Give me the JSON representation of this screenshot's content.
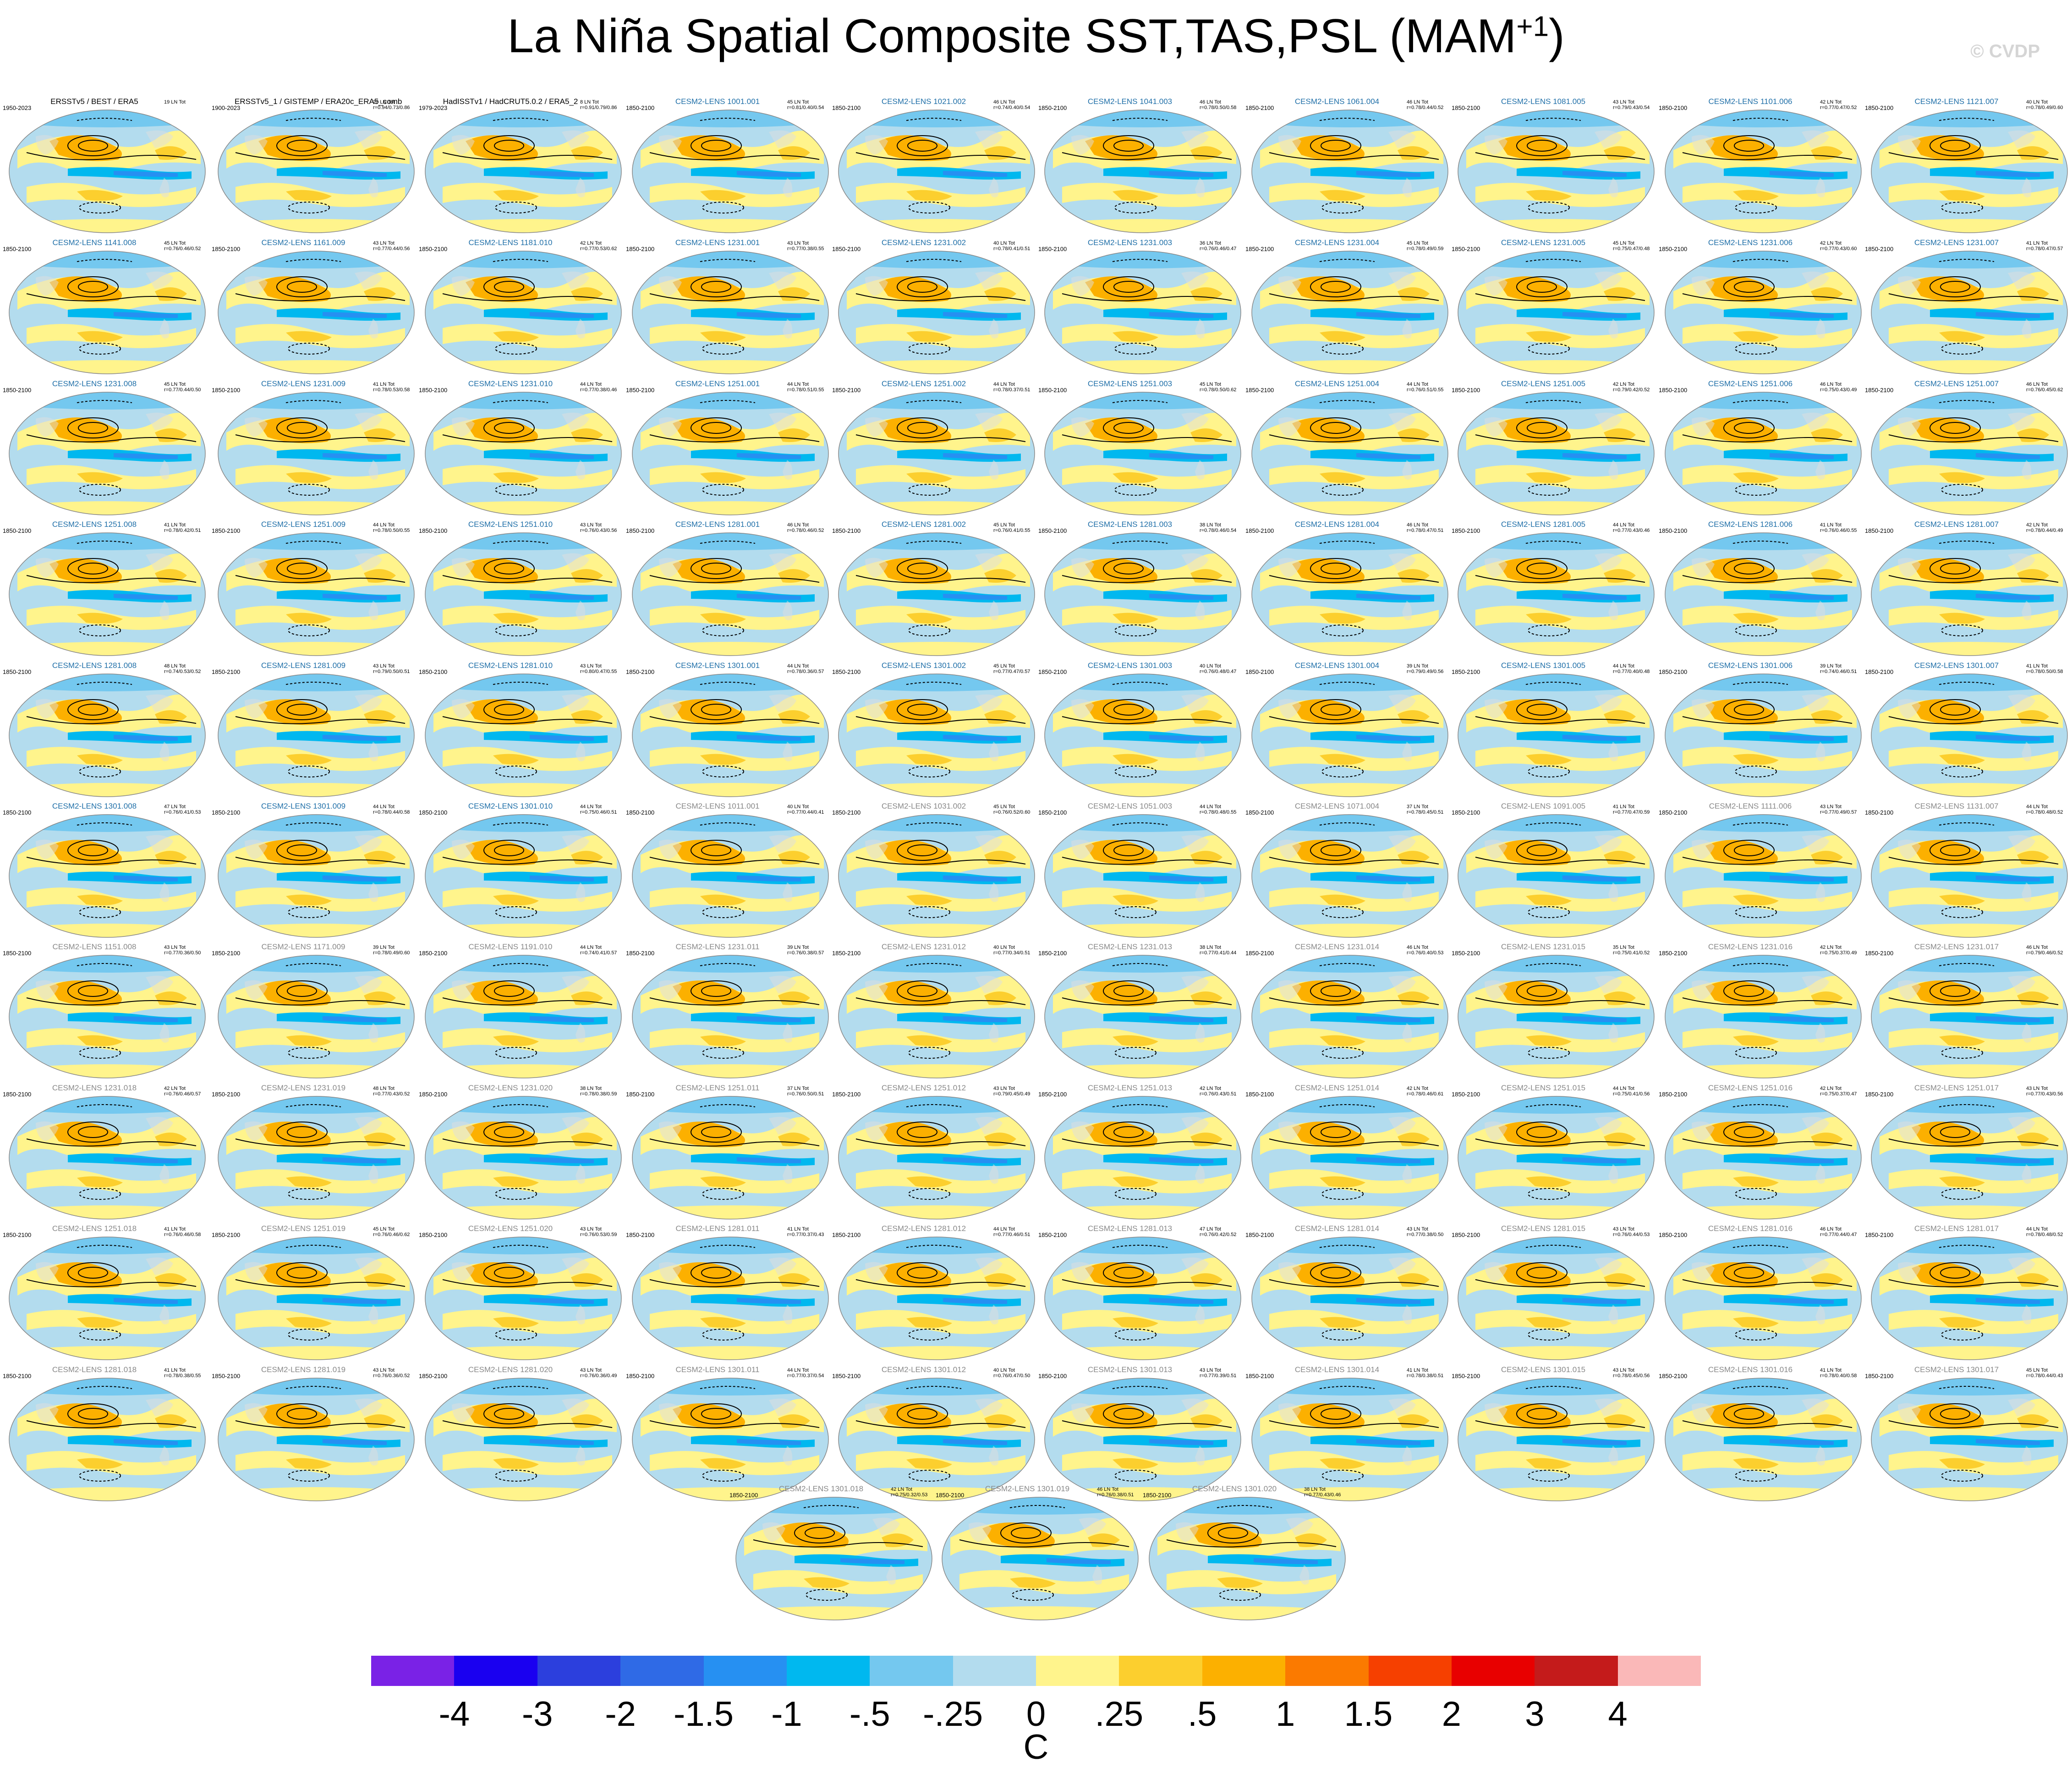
{
  "title_main": "La Niña Spatial Composite SST,TAS,PSL (MAM",
  "title_sup": "+1",
  "title_end": ")",
  "credit": "© CVDP",
  "panels": [
    {
      "title": "ERSSTv5 / BEST / ERA5",
      "years": "1950-2023",
      "stats": "19 LN Tot",
      "kind": "obs"
    },
    {
      "title": "ERSSTv5_1 / GISTEMP / ERA20c_ERA5_comb",
      "years": "1900-2023",
      "stats": "20 LN Tot\nr=0.94/0.73/0.86",
      "kind": "obs"
    },
    {
      "title": "HadISSTv1 / HadCRUT5.0.2 / ERA5_2",
      "years": "1979-2023",
      "stats": "8 LN Tot\nr=0.91/0.79/0.86",
      "kind": "obs"
    },
    {
      "title": "CESM2-LENS 1001.001",
      "years": "1850-2100",
      "stats": "45 LN Tot\nr=0.81/0.40/0.54",
      "kind": "m1"
    },
    {
      "title": "CESM2-LENS 1021.002",
      "years": "1850-2100",
      "stats": "46 LN Tot\nr=0.74/0.40/0.54",
      "kind": "m1"
    },
    {
      "title": "CESM2-LENS 1041.003",
      "years": "1850-2100",
      "stats": "46 LN Tot\nr=0.78/0.50/0.58",
      "kind": "m1"
    },
    {
      "title": "CESM2-LENS 1061.004",
      "years": "1850-2100",
      "stats": "46 LN Tot\nr=0.78/0.44/0.52",
      "kind": "m1"
    },
    {
      "title": "CESM2-LENS 1081.005",
      "years": "1850-2100",
      "stats": "43 LN Tot\nr=0.79/0.43/0.54",
      "kind": "m1"
    },
    {
      "title": "CESM2-LENS 1101.006",
      "years": "1850-2100",
      "stats": "42 LN Tot\nr=0.77/0.47/0.52",
      "kind": "m1"
    },
    {
      "title": "CESM2-LENS 1121.007",
      "years": "1850-2100",
      "stats": "40 LN Tot\nr=0.78/0.49/0.60",
      "kind": "m1"
    },
    {
      "title": "CESM2-LENS 1141.008",
      "years": "1850-2100",
      "stats": "45 LN Tot\nr=0.76/0.46/0.52",
      "kind": "m1"
    },
    {
      "title": "CESM2-LENS 1161.009",
      "years": "1850-2100",
      "stats": "43 LN Tot\nr=0.77/0.44/0.56",
      "kind": "m1"
    },
    {
      "title": "CESM2-LENS 1181.010",
      "years": "1850-2100",
      "stats": "42 LN Tot\nr=0.77/0.53/0.62",
      "kind": "m1"
    },
    {
      "title": "CESM2-LENS 1231.001",
      "years": "1850-2100",
      "stats": "43 LN Tot\nr=0.77/0.38/0.55",
      "kind": "m1"
    },
    {
      "title": "CESM2-LENS 1231.002",
      "years": "1850-2100",
      "stats": "40 LN Tot\nr=0.78/0.41/0.51",
      "kind": "m1"
    },
    {
      "title": "CESM2-LENS 1231.003",
      "years": "1850-2100",
      "stats": "36 LN Tot\nr=0.76/0.46/0.47",
      "kind": "m1"
    },
    {
      "title": "CESM2-LENS 1231.004",
      "years": "1850-2100",
      "stats": "45 LN Tot\nr=0.78/0.49/0.59",
      "kind": "m1"
    },
    {
      "title": "CESM2-LENS 1231.005",
      "years": "1850-2100",
      "stats": "45 LN Tot\nr=0.75/0.47/0.48",
      "kind": "m1"
    },
    {
      "title": "CESM2-LENS 1231.006",
      "years": "1850-2100",
      "stats": "42 LN Tot\nr=0.77/0.43/0.60",
      "kind": "m1"
    },
    {
      "title": "CESM2-LENS 1231.007",
      "years": "1850-2100",
      "stats": "41 LN Tot\nr=0.78/0.47/0.57",
      "kind": "m1"
    },
    {
      "title": "CESM2-LENS 1231.008",
      "years": "1850-2100",
      "stats": "45 LN Tot\nr=0.77/0.44/0.50",
      "kind": "m1"
    },
    {
      "title": "CESM2-LENS 1231.009",
      "years": "1850-2100",
      "stats": "41 LN Tot\nr=0.78/0.53/0.58",
      "kind": "m1"
    },
    {
      "title": "CESM2-LENS 1231.010",
      "years": "1850-2100",
      "stats": "44 LN Tot\nr=0.77/0.38/0.46",
      "kind": "m1"
    },
    {
      "title": "CESM2-LENS 1251.001",
      "years": "1850-2100",
      "stats": "44 LN Tot\nr=0.78/0.51/0.55",
      "kind": "m1"
    },
    {
      "title": "CESM2-LENS 1251.002",
      "years": "1850-2100",
      "stats": "44 LN Tot\nr=0.78/0.37/0.51",
      "kind": "m1"
    },
    {
      "title": "CESM2-LENS 1251.003",
      "years": "1850-2100",
      "stats": "45 LN Tot\nr=0.78/0.50/0.62",
      "kind": "m1"
    },
    {
      "title": "CESM2-LENS 1251.004",
      "years": "1850-2100",
      "stats": "44 LN Tot\nr=0.76/0.51/0.55",
      "kind": "m1"
    },
    {
      "title": "CESM2-LENS 1251.005",
      "years": "1850-2100",
      "stats": "42 LN Tot\nr=0.79/0.42/0.52",
      "kind": "m1"
    },
    {
      "title": "CESM2-LENS 1251.006",
      "years": "1850-2100",
      "stats": "46 LN Tot\nr=0.75/0.43/0.49",
      "kind": "m1"
    },
    {
      "title": "CESM2-LENS 1251.007",
      "years": "1850-2100",
      "stats": "46 LN Tot\nr=0.76/0.45/0.62",
      "kind": "m1"
    },
    {
      "title": "CESM2-LENS 1251.008",
      "years": "1850-2100",
      "stats": "41 LN Tot\nr=0.78/0.42/0.51",
      "kind": "m1"
    },
    {
      "title": "CESM2-LENS 1251.009",
      "years": "1850-2100",
      "stats": "44 LN Tot\nr=0.78/0.50/0.55",
      "kind": "m1"
    },
    {
      "title": "CESM2-LENS 1251.010",
      "years": "1850-2100",
      "stats": "43 LN Tot\nr=0.76/0.43/0.56",
      "kind": "m1"
    },
    {
      "title": "CESM2-LENS 1281.001",
      "years": "1850-2100",
      "stats": "46 LN Tot\nr=0.78/0.46/0.52",
      "kind": "m1"
    },
    {
      "title": "CESM2-LENS 1281.002",
      "years": "1850-2100",
      "stats": "45 LN Tot\nr=0.76/0.41/0.55",
      "kind": "m1"
    },
    {
      "title": "CESM2-LENS 1281.003",
      "years": "1850-2100",
      "stats": "38 LN Tot\nr=0.78/0.46/0.54",
      "kind": "m1"
    },
    {
      "title": "CESM2-LENS 1281.004",
      "years": "1850-2100",
      "stats": "46 LN Tot\nr=0.78/0.47/0.51",
      "kind": "m1"
    },
    {
      "title": "CESM2-LENS 1281.005",
      "years": "1850-2100",
      "stats": "44 LN Tot\nr=0.77/0.43/0.46",
      "kind": "m1"
    },
    {
      "title": "CESM2-LENS 1281.006",
      "years": "1850-2100",
      "stats": "41 LN Tot\nr=0.76/0.46/0.55",
      "kind": "m1"
    },
    {
      "title": "CESM2-LENS 1281.007",
      "years": "1850-2100",
      "stats": "42 LN Tot\nr=0.78/0.44/0.49",
      "kind": "m1"
    },
    {
      "title": "CESM2-LENS 1281.008",
      "years": "1850-2100",
      "stats": "48 LN Tot\nr=0.74/0.53/0.52",
      "kind": "m1"
    },
    {
      "title": "CESM2-LENS 1281.009",
      "years": "1850-2100",
      "stats": "43 LN Tot\nr=0.79/0.50/0.51",
      "kind": "m1"
    },
    {
      "title": "CESM2-LENS 1281.010",
      "years": "1850-2100",
      "stats": "43 LN Tot\nr=0.80/0.47/0.55",
      "kind": "m1"
    },
    {
      "title": "CESM2-LENS 1301.001",
      "years": "1850-2100",
      "stats": "44 LN Tot\nr=0.78/0.36/0.57",
      "kind": "m1"
    },
    {
      "title": "CESM2-LENS 1301.002",
      "years": "1850-2100",
      "stats": "45 LN Tot\nr=0.77/0.47/0.57",
      "kind": "m1"
    },
    {
      "title": "CESM2-LENS 1301.003",
      "years": "1850-2100",
      "stats": "40 LN Tot\nr=0.76/0.48/0.47",
      "kind": "m1"
    },
    {
      "title": "CESM2-LENS 1301.004",
      "years": "1850-2100",
      "stats": "39 LN Tot\nr=0.79/0.49/0.56",
      "kind": "m1"
    },
    {
      "title": "CESM2-LENS 1301.005",
      "years": "1850-2100",
      "stats": "44 LN Tot\nr=0.77/0.40/0.48",
      "kind": "m1"
    },
    {
      "title": "CESM2-LENS 1301.006",
      "years": "1850-2100",
      "stats": "39 LN Tot\nr=0.74/0.46/0.51",
      "kind": "m1"
    },
    {
      "title": "CESM2-LENS 1301.007",
      "years": "1850-2100",
      "stats": "41 LN Tot\nr=0.78/0.50/0.58",
      "kind": "m1"
    },
    {
      "title": "CESM2-LENS 1301.008",
      "years": "1850-2100",
      "stats": "47 LN Tot\nr=0.76/0.41/0.53",
      "kind": "m1"
    },
    {
      "title": "CESM2-LENS 1301.009",
      "years": "1850-2100",
      "stats": "44 LN Tot\nr=0.78/0.44/0.58",
      "kind": "m1"
    },
    {
      "title": "CESM2-LENS 1301.010",
      "years": "1850-2100",
      "stats": "44 LN Tot\nr=0.75/0.46/0.51",
      "kind": "m1"
    },
    {
      "title": "CESM2-LENS 1011.001",
      "years": "1850-2100",
      "stats": "40 LN Tot\nr=0.77/0.44/0.41",
      "kind": "m2"
    },
    {
      "title": "CESM2-LENS 1031.002",
      "years": "1850-2100",
      "stats": "45 LN Tot\nr=0.76/0.52/0.60",
      "kind": "m2"
    },
    {
      "title": "CESM2-LENS 1051.003",
      "years": "1850-2100",
      "stats": "44 LN Tot\nr=0.78/0.48/0.55",
      "kind": "m2"
    },
    {
      "title": "CESM2-LENS 1071.004",
      "years": "1850-2100",
      "stats": "37 LN Tot\nr=0.78/0.45/0.51",
      "kind": "m2"
    },
    {
      "title": "CESM2-LENS 1091.005",
      "years": "1850-2100",
      "stats": "41 LN Tot\nr=0.77/0.47/0.59",
      "kind": "m2"
    },
    {
      "title": "CESM2-LENS 1111.006",
      "years": "1850-2100",
      "stats": "43 LN Tot\nr=0.77/0.49/0.57",
      "kind": "m2"
    },
    {
      "title": "CESM2-LENS 1131.007",
      "years": "1850-2100",
      "stats": "44 LN Tot\nr=0.78/0.48/0.52",
      "kind": "m2"
    },
    {
      "title": "CESM2-LENS 1151.008",
      "years": "1850-2100",
      "stats": "43 LN Tot\nr=0.77/0.36/0.50",
      "kind": "m2"
    },
    {
      "title": "CESM2-LENS 1171.009",
      "years": "1850-2100",
      "stats": "39 LN Tot\nr=0.78/0.49/0.60",
      "kind": "m2"
    },
    {
      "title": "CESM2-LENS 1191.010",
      "years": "1850-2100",
      "stats": "44 LN Tot\nr=0.74/0.41/0.57",
      "kind": "m2"
    },
    {
      "title": "CESM2-LENS 1231.011",
      "years": "1850-2100",
      "stats": "39 LN Tot\nr=0.76/0.38/0.57",
      "kind": "m2"
    },
    {
      "title": "CESM2-LENS 1231.012",
      "years": "1850-2100",
      "stats": "40 LN Tot\nr=0.77/0.34/0.51",
      "kind": "m2"
    },
    {
      "title": "CESM2-LENS 1231.013",
      "years": "1850-2100",
      "stats": "38 LN Tot\nr=0.77/0.41/0.44",
      "kind": "m2"
    },
    {
      "title": "CESM2-LENS 1231.014",
      "years": "1850-2100",
      "stats": "46 LN Tot\nr=0.76/0.40/0.53",
      "kind": "m2"
    },
    {
      "title": "CESM2-LENS 1231.015",
      "years": "1850-2100",
      "stats": "35 LN Tot\nr=0.75/0.41/0.52",
      "kind": "m2"
    },
    {
      "title": "CESM2-LENS 1231.016",
      "years": "1850-2100",
      "stats": "42 LN Tot\nr=0.75/0.37/0.49",
      "kind": "m2"
    },
    {
      "title": "CESM2-LENS 1231.017",
      "years": "1850-2100",
      "stats": "46 LN Tot\nr=0.79/0.46/0.52",
      "kind": "m2"
    },
    {
      "title": "CESM2-LENS 1231.018",
      "years": "1850-2100",
      "stats": "42 LN Tot\nr=0.76/0.46/0.57",
      "kind": "m2"
    },
    {
      "title": "CESM2-LENS 1231.019",
      "years": "1850-2100",
      "stats": "48 LN Tot\nr=0.77/0.43/0.52",
      "kind": "m2"
    },
    {
      "title": "CESM2-LENS 1231.020",
      "years": "1850-2100",
      "stats": "38 LN Tot\nr=0.78/0.38/0.59",
      "kind": "m2"
    },
    {
      "title": "CESM2-LENS 1251.011",
      "years": "1850-2100",
      "stats": "37 LN Tot\nr=0.76/0.50/0.51",
      "kind": "m2"
    },
    {
      "title": "CESM2-LENS 1251.012",
      "years": "1850-2100",
      "stats": "43 LN Tot\nr=0.79/0.45/0.49",
      "kind": "m2"
    },
    {
      "title": "CESM2-LENS 1251.013",
      "years": "1850-2100",
      "stats": "42 LN Tot\nr=0.76/0.43/0.51",
      "kind": "m2"
    },
    {
      "title": "CESM2-LENS 1251.014",
      "years": "1850-2100",
      "stats": "42 LN Tot\nr=0.78/0.46/0.61",
      "kind": "m2"
    },
    {
      "title": "CESM2-LENS 1251.015",
      "years": "1850-2100",
      "stats": "44 LN Tot\nr=0.75/0.41/0.56",
      "kind": "m2"
    },
    {
      "title": "CESM2-LENS 1251.016",
      "years": "1850-2100",
      "stats": "42 LN Tot\nr=0.75/0.37/0.47",
      "kind": "m2"
    },
    {
      "title": "CESM2-LENS 1251.017",
      "years": "1850-2100",
      "stats": "43 LN Tot\nr=0.77/0.43/0.56",
      "kind": "m2"
    },
    {
      "title": "CESM2-LENS 1251.018",
      "years": "1850-2100",
      "stats": "41 LN Tot\nr=0.76/0.46/0.58",
      "kind": "m2"
    },
    {
      "title": "CESM2-LENS 1251.019",
      "years": "1850-2100",
      "stats": "45 LN Tot\nr=0.76/0.46/0.62",
      "kind": "m2"
    },
    {
      "title": "CESM2-LENS 1251.020",
      "years": "1850-2100",
      "stats": "43 LN Tot\nr=0.76/0.53/0.59",
      "kind": "m2"
    },
    {
      "title": "CESM2-LENS 1281.011",
      "years": "1850-2100",
      "stats": "41 LN Tot\nr=0.77/0.37/0.43",
      "kind": "m2"
    },
    {
      "title": "CESM2-LENS 1281.012",
      "years": "1850-2100",
      "stats": "44 LN Tot\nr=0.77/0.46/0.51",
      "kind": "m2"
    },
    {
      "title": "CESM2-LENS 1281.013",
      "years": "1850-2100",
      "stats": "47 LN Tot\nr=0.76/0.42/0.52",
      "kind": "m2"
    },
    {
      "title": "CESM2-LENS 1281.014",
      "years": "1850-2100",
      "stats": "43 LN Tot\nr=0.77/0.38/0.50",
      "kind": "m2"
    },
    {
      "title": "CESM2-LENS 1281.015",
      "years": "1850-2100",
      "stats": "43 LN Tot\nr=0.76/0.44/0.53",
      "kind": "m2"
    },
    {
      "title": "CESM2-LENS 1281.016",
      "years": "1850-2100",
      "stats": "46 LN Tot\nr=0.77/0.44/0.47",
      "kind": "m2"
    },
    {
      "title": "CESM2-LENS 1281.017",
      "years": "1850-2100",
      "stats": "44 LN Tot\nr=0.78/0.48/0.52",
      "kind": "m2"
    },
    {
      "title": "CESM2-LENS 1281.018",
      "years": "1850-2100",
      "stats": "41 LN Tot\nr=0.78/0.38/0.55",
      "kind": "m2"
    },
    {
      "title": "CESM2-LENS 1281.019",
      "years": "1850-2100",
      "stats": "43 LN Tot\nr=0.76/0.36/0.52",
      "kind": "m2"
    },
    {
      "title": "CESM2-LENS 1281.020",
      "years": "1850-2100",
      "stats": "43 LN Tot\nr=0.76/0.36/0.49",
      "kind": "m2"
    },
    {
      "title": "CESM2-LENS 1301.011",
      "years": "1850-2100",
      "stats": "44 LN Tot\nr=0.77/0.37/0.54",
      "kind": "m2"
    },
    {
      "title": "CESM2-LENS 1301.012",
      "years": "1850-2100",
      "stats": "40 LN Tot\nr=0.76/0.47/0.50",
      "kind": "m2"
    },
    {
      "title": "CESM2-LENS 1301.013",
      "years": "1850-2100",
      "stats": "43 LN Tot\nr=0.77/0.39/0.51",
      "kind": "m2"
    },
    {
      "title": "CESM2-LENS 1301.014",
      "years": "1850-2100",
      "stats": "41 LN Tot\nr=0.78/0.38/0.51",
      "kind": "m2"
    },
    {
      "title": "CESM2-LENS 1301.015",
      "years": "1850-2100",
      "stats": "43 LN Tot\nr=0.78/0.45/0.56",
      "kind": "m2"
    },
    {
      "title": "CESM2-LENS 1301.016",
      "years": "1850-2100",
      "stats": "41 LN Tot\nr=0.78/0.40/0.58",
      "kind": "m2"
    },
    {
      "title": "CESM2-LENS 1301.017",
      "years": "1850-2100",
      "stats": "45 LN Tot\nr=0.78/0.44/0.43",
      "kind": "m2"
    },
    {
      "title": "CESM2-LENS 1301.018",
      "years": "1850-2100",
      "stats": "42 LN Tot\nr=0.75/0.32/0.53",
      "kind": "m2"
    },
    {
      "title": "CESM2-LENS 1301.019",
      "years": "1850-2100",
      "stats": "46 LN Tot\nr=0.76/0.38/0.51",
      "kind": "m2"
    },
    {
      "title": "CESM2-LENS 1301.020",
      "years": "1850-2100",
      "stats": "38 LN Tot\nr=0.77/0.43/0.46",
      "kind": "m2"
    }
  ],
  "colorbar": {
    "colors": [
      "#7a22e6",
      "#1a00f0",
      "#2c3fdd",
      "#2f6ae6",
      "#2690f2",
      "#00b8ef",
      "#74c8ef",
      "#b3dcee",
      "#fff48c",
      "#fccf2e",
      "#fcb000",
      "#fb7a00",
      "#f64000",
      "#e80000",
      "#c41b1b",
      "#fab8b8"
    ],
    "ticks": [
      "-4",
      "-3",
      "-2",
      "-1.5",
      "-1",
      "-.5",
      "-.25",
      "0",
      ".25",
      ".5",
      "1",
      "1.5",
      "2",
      "3",
      "4"
    ],
    "unit": "C"
  },
  "chart_data": {
    "type": "heatmap",
    "title": "La Niña Spatial Composite SST,TAS,PSL (MAM+1)",
    "panel_count": 103,
    "colorbar_levels": [
      -4,
      -3,
      -2,
      -1.5,
      -1,
      -0.5,
      -0.25,
      0,
      0.25,
      0.5,
      1,
      1.5,
      2,
      3,
      4
    ],
    "colorbar_unit": "C",
    "description_fields": [
      "SST/TAS shading (C)",
      "PSL contours"
    ]
  }
}
